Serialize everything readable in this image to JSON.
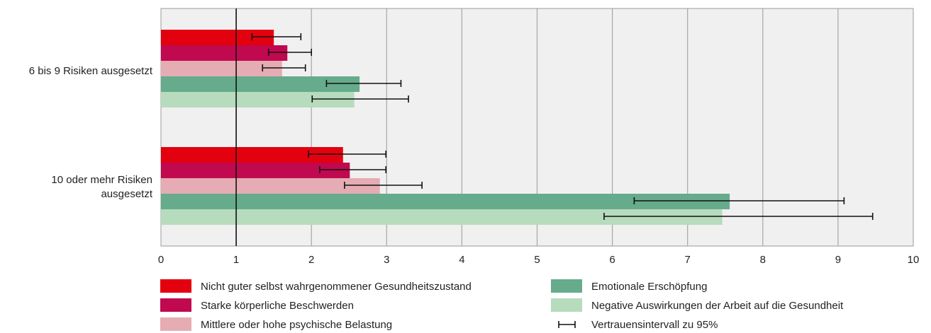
{
  "chart_data": {
    "type": "bar",
    "orientation": "horizontal",
    "categories": [
      "6 bis 9 Risiken ausgesetzt",
      "10 oder mehr Risiken ausgesetzt"
    ],
    "category_lines": [
      [
        "6 bis 9 Risiken ausgesetzt"
      ],
      [
        "10 oder mehr Risiken",
        "ausgesetzt"
      ]
    ],
    "xlim": [
      0,
      10
    ],
    "xticks": [
      "0",
      "1",
      "2",
      "3",
      "4",
      "5",
      "6",
      "7",
      "8",
      "9",
      "10"
    ],
    "reference_line": 1,
    "grid": "vertical",
    "legend_position": "bottom",
    "series": [
      {
        "name": "Nicht guter selbst wahrgenommener Gesundheitszustand",
        "color": "#e3000f",
        "values": [
          1.5,
          2.42
        ],
        "ci_low": [
          1.21,
          1.96
        ],
        "ci_high": [
          1.86,
          2.99
        ]
      },
      {
        "name": "Starke körperliche Beschwerden",
        "color": "#c0094f",
        "values": [
          1.68,
          2.51
        ],
        "ci_low": [
          1.43,
          2.11
        ],
        "ci_high": [
          2.0,
          2.99
        ]
      },
      {
        "name": "Mittlere oder hohe psychische Belastung",
        "color": "#e5acb3",
        "values": [
          1.61,
          2.91
        ],
        "ci_low": [
          1.35,
          2.44
        ],
        "ci_high": [
          1.92,
          3.47
        ]
      },
      {
        "name": "Emotionale Erschöpfung",
        "color": "#66ab8c",
        "values": [
          2.64,
          7.56
        ],
        "ci_low": [
          2.2,
          6.29
        ],
        "ci_high": [
          3.19,
          9.08
        ]
      },
      {
        "name": "Negative Auswirkungen der Arbeit auf die Gesundheit",
        "color": "#b6dbbd",
        "values": [
          2.57,
          7.46
        ],
        "ci_low": [
          2.01,
          5.89
        ],
        "ci_high": [
          3.29,
          9.46
        ]
      }
    ],
    "ci_legend_label": "Vertrauensintervall zu 95%"
  }
}
